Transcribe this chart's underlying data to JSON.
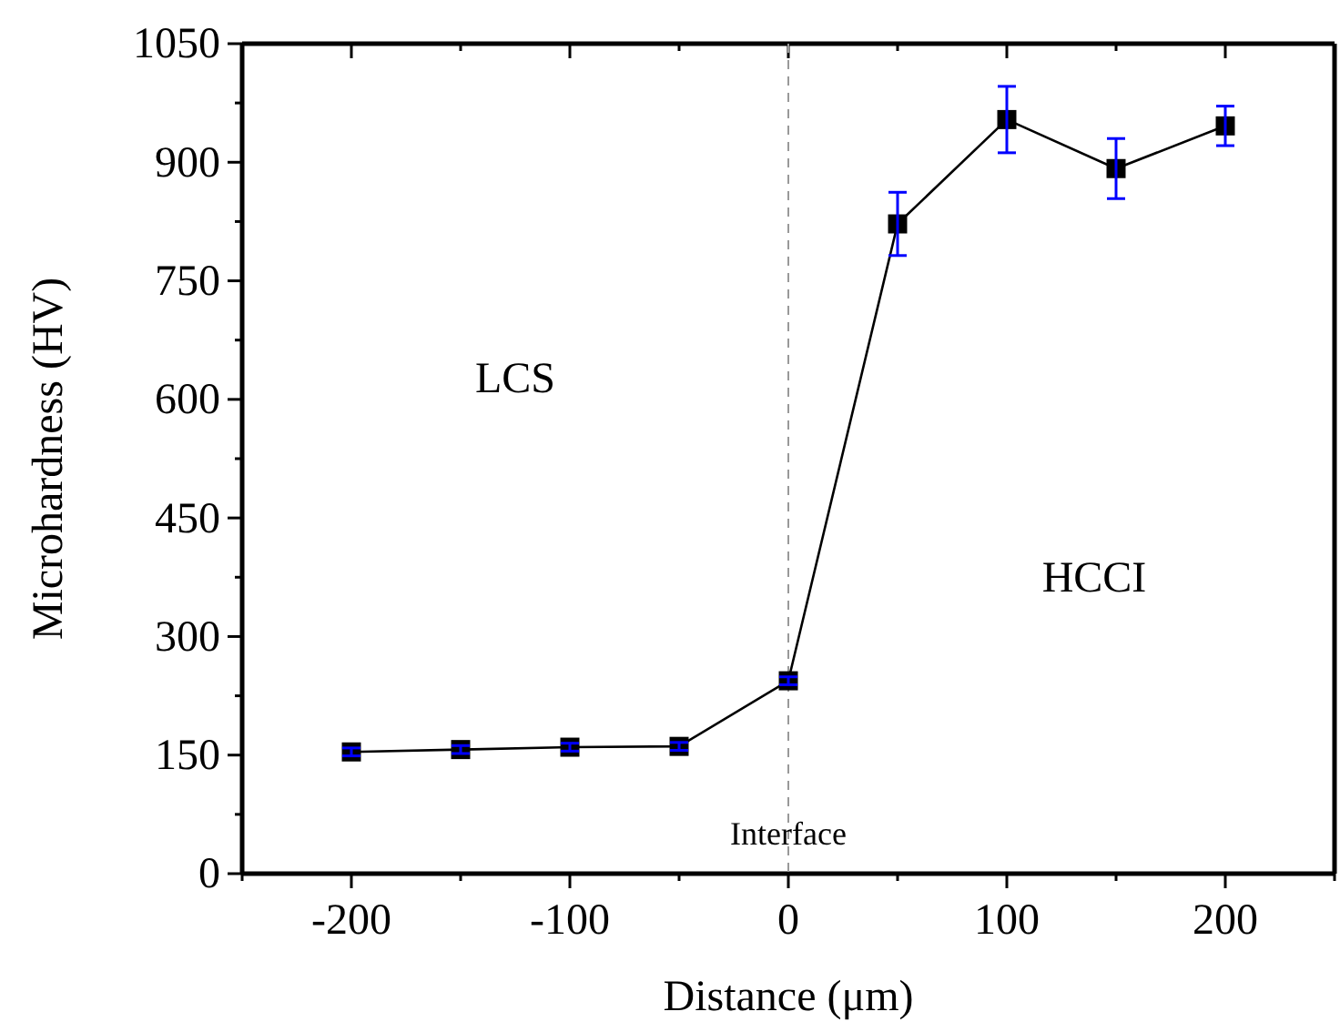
{
  "chart_data": {
    "type": "line",
    "xlabel": "Distance (μm)",
    "ylabel": "Microhardness (HV)",
    "x": [
      -200,
      -150,
      -100,
      -50,
      0,
      50,
      100,
      150,
      200
    ],
    "series": [
      {
        "color": "#000000",
        "values": [
          154,
          157,
          160,
          161,
          244,
          822,
          954,
          892,
          946
        ],
        "errors": [
          5,
          5,
          5,
          5,
          5,
          40,
          42,
          38,
          25
        ]
      }
    ],
    "marker": "square",
    "line_style": "solid",
    "xlim": [
      -250,
      250
    ],
    "xticks": [
      {
        "value": -250,
        "label": null
      },
      -200,
      {
        "value": -150,
        "label": null
      },
      -100,
      {
        "value": -50,
        "label": null
      },
      0,
      {
        "value": 50,
        "label": null
      },
      100,
      {
        "value": 150,
        "label": null
      },
      200,
      {
        "value": 250,
        "label": null
      }
    ],
    "ylim": [
      0,
      1050
    ],
    "yticks": [
      0,
      {
        "value": 75,
        "label": null
      },
      150,
      {
        "value": 225,
        "label": null
      },
      300,
      {
        "value": 375,
        "label": null
      },
      450,
      {
        "value": 525,
        "label": null
      },
      600,
      {
        "value": 675,
        "label": null
      },
      750,
      {
        "value": 825,
        "label": null
      },
      900,
      {
        "value": 975,
        "label": null
      },
      1050
    ],
    "ref_lines": [
      {
        "axis": "x",
        "value": 0,
        "label": "Interface",
        "color": "#999999",
        "line_style": "dashed"
      }
    ],
    "annotations": [
      "LCS",
      "HCCI"
    ],
    "grid": false
  }
}
